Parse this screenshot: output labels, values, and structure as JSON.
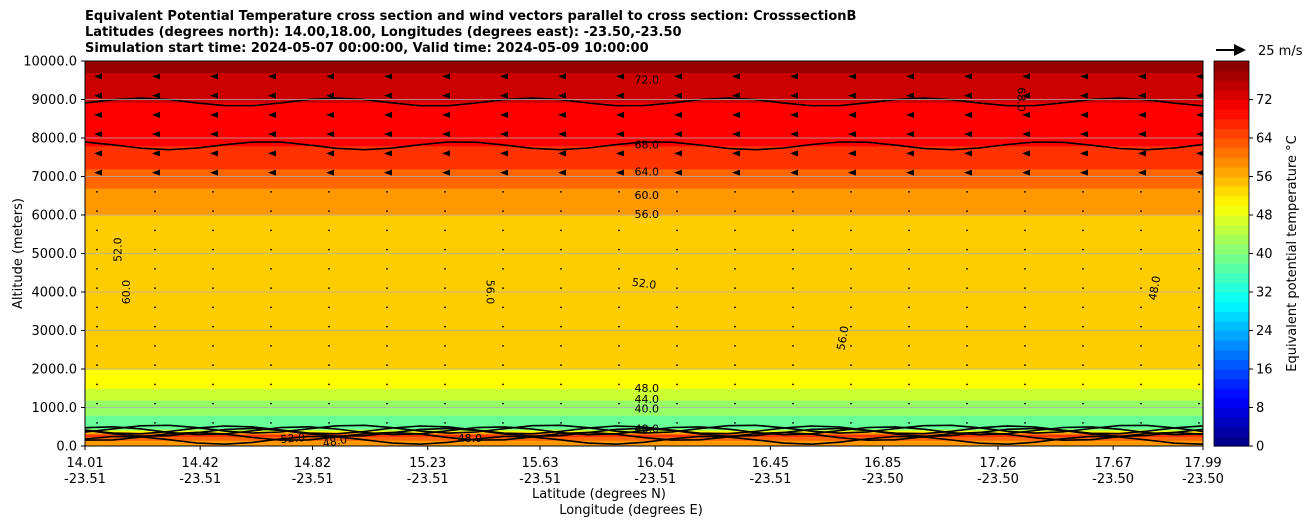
{
  "title_lines": [
    "Equivalent Potential Temperature cross section and wind vectors parallel to cross section: CrosssectionB",
    "Latitudes (degrees north): 14.00,18.00, Longitudes (degrees east): -23.50,-23.50",
    "Simulation start time: 2024-05-07 00:00:00, Valid time: 2024-05-09 10:00:00"
  ],
  "quiver_key_label": "25 m/s",
  "chart_data": {
    "type": "heatmap",
    "title": "Equivalent Potential Temperature cross section and wind vectors parallel to cross section: CrosssectionB",
    "ylabel": "Altitude (meters)",
    "xlabel_lines": [
      "Latitude (degrees N)",
      "Longitude (degrees E)"
    ],
    "colorbar_label": "Equivalent potential temperature °C",
    "ylim": [
      0,
      10000
    ],
    "y_ticks": [
      "0.0",
      "1000.0",
      "2000.0",
      "3000.0",
      "4000.0",
      "5000.0",
      "6000.0",
      "7000.0",
      "8000.0",
      "9000.0",
      "10000.0"
    ],
    "x_ticks": [
      {
        "lat": "14.01",
        "lon": "-23.51"
      },
      {
        "lat": "14.42",
        "lon": "-23.51"
      },
      {
        "lat": "14.82",
        "lon": "-23.51"
      },
      {
        "lat": "15.23",
        "lon": "-23.51"
      },
      {
        "lat": "15.63",
        "lon": "-23.51"
      },
      {
        "lat": "16.04",
        "lon": "-23.51"
      },
      {
        "lat": "16.45",
        "lon": "-23.51"
      },
      {
        "lat": "16.85",
        "lon": "-23.50"
      },
      {
        "lat": "17.26",
        "lon": "-23.50"
      },
      {
        "lat": "17.67",
        "lon": "-23.50"
      },
      {
        "lat": "17.99",
        "lon": "-23.50"
      }
    ],
    "colorbar_range": [
      0,
      80
    ],
    "colorbar_ticks": [
      "0",
      "8",
      "16",
      "24",
      "32",
      "40",
      "48",
      "56",
      "64",
      "72"
    ],
    "colormap": "jet",
    "grid": "horizontal",
    "theta_e_profile_by_altitude": [
      {
        "z": 0,
        "v": 58
      },
      {
        "z": 150,
        "v": 60
      },
      {
        "z": 300,
        "v": 66
      },
      {
        "z": 450,
        "v": 38
      },
      {
        "z": 800,
        "v": 40
      },
      {
        "z": 1000,
        "v": 40
      },
      {
        "z": 1200,
        "v": 44
      },
      {
        "z": 1500,
        "v": 48
      },
      {
        "z": 2000,
        "v": 52
      },
      {
        "z": 3000,
        "v": 54
      },
      {
        "z": 4000,
        "v": 54
      },
      {
        "z": 5000,
        "v": 53
      },
      {
        "z": 6000,
        "v": 56
      },
      {
        "z": 6700,
        "v": 60
      },
      {
        "z": 7200,
        "v": 64
      },
      {
        "z": 7800,
        "v": 68
      },
      {
        "z": 8700,
        "v": 71
      },
      {
        "z": 9400,
        "v": 74
      },
      {
        "z": 10000,
        "v": 78
      }
    ],
    "contour_labels": [
      {
        "text": "72.0",
        "x": 16.01,
        "z": 9500,
        "angle": 0
      },
      {
        "text": "68.0",
        "x": 16.01,
        "z": 7800,
        "angle": 0
      },
      {
        "text": "64.0",
        "x": 16.01,
        "z": 7100,
        "angle": 0
      },
      {
        "text": "60.0",
        "x": 16.01,
        "z": 6500,
        "angle": 0
      },
      {
        "text": "56.0",
        "x": 16.01,
        "z": 6000,
        "angle": 0
      },
      {
        "text": "52.0",
        "x": 16.0,
        "z": 4200,
        "angle": 8
      },
      {
        "text": "56.0",
        "x": 16.71,
        "z": 2800,
        "angle": -80
      },
      {
        "text": "48.0",
        "x": 17.82,
        "z": 4100,
        "angle": -80
      },
      {
        "text": "68.0",
        "x": 17.34,
        "z": 9000,
        "angle": 90
      },
      {
        "text": "52.0",
        "x": 14.13,
        "z": 5100,
        "angle": -90
      },
      {
        "text": "60.0",
        "x": 14.16,
        "z": 4000,
        "angle": -90
      },
      {
        "text": "56.0",
        "x": 15.45,
        "z": 4000,
        "angle": 90
      },
      {
        "text": "48.0",
        "x": 16.01,
        "z": 1480,
        "angle": 0
      },
      {
        "text": "44.0",
        "x": 16.01,
        "z": 1200,
        "angle": 0
      },
      {
        "text": "40.0",
        "x": 16.01,
        "z": 950,
        "angle": 0
      },
      {
        "text": "48.0",
        "x": 16.01,
        "z": 430,
        "angle": 0
      },
      {
        "text": "52.0",
        "x": 14.75,
        "z": 180,
        "angle": -5
      },
      {
        "text": "48.0",
        "x": 15.38,
        "z": 180,
        "angle": 0
      },
      {
        "text": "48.0",
        "x": 14.9,
        "z": 100,
        "angle": -10
      }
    ],
    "wind_vectors": "mostly westward (right-to-left) arrows aloft above ~7000 m, weak near-zero vectors below",
    "quiver_key": "25 m/s"
  }
}
